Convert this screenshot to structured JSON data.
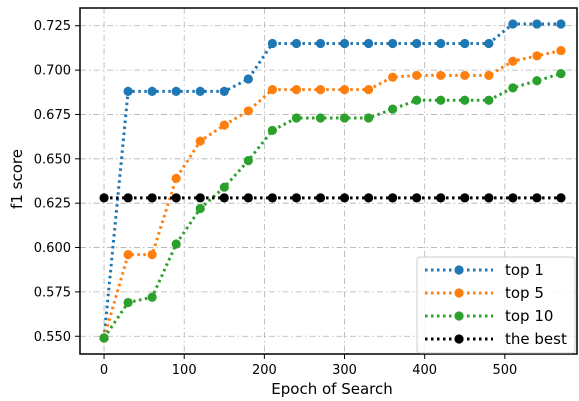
{
  "chart_data": {
    "type": "line",
    "title": "",
    "xlabel": "Epoch of Search",
    "ylabel": "f1 score",
    "xlim": [
      -30,
      590
    ],
    "ylim": [
      0.54,
      0.735
    ],
    "xticks": [
      0,
      100,
      200,
      300,
      400,
      500
    ],
    "yticks": [
      0.55,
      0.575,
      0.6,
      0.625,
      0.65,
      0.675,
      0.7,
      0.725
    ],
    "xtick_labels": [
      "0",
      "100",
      "200",
      "300",
      "400",
      "500"
    ],
    "ytick_labels": [
      "0.550",
      "0.575",
      "0.600",
      "0.625",
      "0.650",
      "0.675",
      "0.700",
      "0.725"
    ],
    "grid": true,
    "legend_position": "bottom-right",
    "x": [
      0,
      30,
      60,
      90,
      120,
      150,
      180,
      210,
      240,
      270,
      300,
      330,
      360,
      390,
      420,
      450,
      480,
      510,
      540,
      570
    ],
    "series": [
      {
        "name": "top 1",
        "color": "#1f77b4",
        "values": [
          0.549,
          0.688,
          0.688,
          0.688,
          0.688,
          0.688,
          0.695,
          0.715,
          0.715,
          0.715,
          0.715,
          0.715,
          0.715,
          0.715,
          0.715,
          0.715,
          0.715,
          0.726,
          0.726,
          0.726
        ]
      },
      {
        "name": "top 5",
        "color": "#ff7f0e",
        "values": [
          0.549,
          0.596,
          0.596,
          0.639,
          0.66,
          0.669,
          0.677,
          0.689,
          0.689,
          0.689,
          0.689,
          0.689,
          0.696,
          0.697,
          0.697,
          0.697,
          0.697,
          0.705,
          0.708,
          0.711
        ]
      },
      {
        "name": "top 10",
        "color": "#2ca02c",
        "values": [
          0.549,
          0.569,
          0.572,
          0.602,
          0.622,
          0.634,
          0.649,
          0.666,
          0.673,
          0.673,
          0.673,
          0.673,
          0.678,
          0.683,
          0.683,
          0.683,
          0.683,
          0.69,
          0.694,
          0.698
        ]
      },
      {
        "name": "the best",
        "color": "#000000",
        "values": [
          0.628,
          0.628,
          0.628,
          0.628,
          0.628,
          0.628,
          0.628,
          0.628,
          0.628,
          0.628,
          0.628,
          0.628,
          0.628,
          0.628,
          0.628,
          0.628,
          0.628,
          0.628,
          0.628,
          0.628
        ]
      }
    ]
  }
}
